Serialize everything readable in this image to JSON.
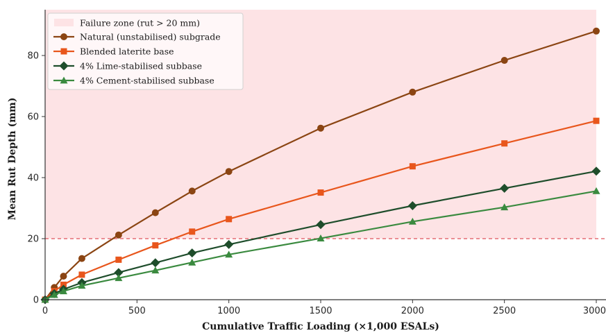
{
  "chart_data": {
    "type": "line",
    "title": "",
    "xlabel": "Cumulative Traffic Loading (×1,000 ESALs)",
    "ylabel": "Mean Rut Depth (mm)",
    "xlim": [
      0,
      3000
    ],
    "ylim": [
      0,
      95
    ],
    "x_ticks": [
      0,
      500,
      1000,
      1500,
      2000,
      2500,
      3000
    ],
    "y_ticks": [
      0,
      20,
      40,
      60,
      80
    ],
    "grid": false,
    "legend_position": "top-left",
    "x": [
      0,
      50,
      100,
      200,
      400,
      600,
      800,
      1000,
      1500,
      2000,
      2500,
      3000
    ],
    "failure_zone": {
      "label": "Failure zone (rut > 20 mm)",
      "threshold": 20,
      "color": "#fde3e5",
      "line_color": "#e0535c"
    },
    "series": [
      {
        "name": "Natural (unstabilised) subgrade",
        "marker": "circle",
        "color": "#8b4513",
        "values": [
          0,
          4.0,
          7.7,
          13.5,
          21.2,
          28.5,
          35.6,
          42.0,
          56.2,
          68.0,
          78.4,
          88.0
        ]
      },
      {
        "name": "Blended laterite base",
        "marker": "square",
        "color": "#e8561c",
        "values": [
          0,
          2.8,
          4.9,
          8.2,
          13.1,
          17.8,
          22.3,
          26.4,
          35.1,
          43.7,
          51.2,
          58.6
        ]
      },
      {
        "name": "4% Lime-stabilised subbase",
        "marker": "diamond",
        "color": "#1e4d2b",
        "values": [
          0,
          2.0,
          3.4,
          5.6,
          8.9,
          12.1,
          15.3,
          18.1,
          24.6,
          30.8,
          36.5,
          42.1
        ]
      },
      {
        "name": "4% Cement-stabilised subbase",
        "marker": "triangle",
        "color": "#3a8a3f",
        "values": [
          0,
          1.6,
          2.8,
          4.6,
          7.1,
          9.6,
          12.2,
          14.8,
          20.1,
          25.6,
          30.3,
          35.6
        ]
      }
    ]
  }
}
